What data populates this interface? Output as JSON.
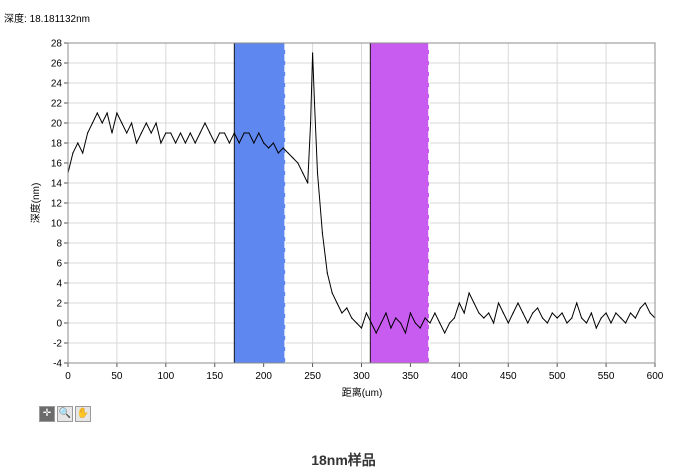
{
  "readout": {
    "label": "深度:",
    "value": "18.181132nm"
  },
  "caption": "18nm样品",
  "toolbar": [
    {
      "name": "cursor-move-tool",
      "glyph": "✛"
    },
    {
      "name": "zoom-tool",
      "glyph": "🔍"
    },
    {
      "name": "pan-hand-tool",
      "glyph": "✋"
    }
  ],
  "chart_data": {
    "type": "line",
    "title": "",
    "xlabel": "距离(um)",
    "ylabel": "深度(nm)",
    "xlim": [
      0,
      600
    ],
    "ylim": [
      -4,
      28
    ],
    "xticks": [
      "0",
      "50",
      "100",
      "150",
      "200",
      "250",
      "300",
      "350",
      "400",
      "450",
      "500",
      "550",
      "600"
    ],
    "yticks": [
      "-4",
      "-2",
      "0",
      "2",
      "4",
      "6",
      "8",
      "10",
      "12",
      "14",
      "16",
      "18",
      "20",
      "22",
      "24",
      "26",
      "28"
    ],
    "grid": true,
    "series": [
      {
        "line_color": "#000000",
        "x": [
          0,
          5,
          10,
          15,
          20,
          25,
          30,
          35,
          40,
          45,
          50,
          55,
          60,
          65,
          70,
          75,
          80,
          85,
          90,
          95,
          100,
          105,
          110,
          115,
          120,
          125,
          130,
          135,
          140,
          145,
          150,
          155,
          160,
          165,
          170,
          175,
          180,
          185,
          190,
          195,
          200,
          205,
          210,
          215,
          220,
          225,
          230,
          235,
          240,
          245,
          248,
          250,
          252,
          255,
          260,
          265,
          270,
          275,
          280,
          285,
          290,
          295,
          300,
          305,
          310,
          315,
          320,
          325,
          330,
          335,
          340,
          345,
          350,
          355,
          360,
          365,
          370,
          375,
          380,
          385,
          390,
          395,
          400,
          405,
          410,
          415,
          420,
          425,
          430,
          435,
          440,
          445,
          450,
          455,
          460,
          465,
          470,
          475,
          480,
          485,
          490,
          495,
          500,
          505,
          510,
          515,
          520,
          525,
          530,
          535,
          540,
          545,
          550,
          555,
          560,
          565,
          570,
          575,
          580,
          585,
          590,
          595,
          600
        ],
        "y": [
          15,
          17,
          18,
          17,
          19,
          20,
          21,
          20,
          21,
          19,
          21,
          20,
          19,
          20,
          18,
          19,
          20,
          19,
          20,
          18,
          19,
          19,
          18,
          19,
          18,
          19,
          18,
          19,
          20,
          19,
          18,
          19,
          19,
          18,
          19,
          18,
          19,
          19,
          18,
          19,
          18,
          17.5,
          18,
          17,
          17.5,
          17,
          16.5,
          16,
          15,
          14,
          20,
          27,
          22,
          15,
          9,
          5,
          3,
          2,
          1,
          1.5,
          0.5,
          0,
          -0.5,
          1,
          0,
          -1,
          0,
          1,
          -0.5,
          0.5,
          0,
          -1,
          1,
          0,
          -0.5,
          0.5,
          0,
          1,
          0,
          -1,
          0,
          0.5,
          2,
          1,
          3,
          2,
          1,
          0.5,
          1,
          0,
          2,
          1,
          0,
          1,
          2,
          1,
          0,
          1,
          1.5,
          0.5,
          0,
          1,
          0.5,
          1,
          0,
          0.5,
          2,
          0.5,
          0,
          1,
          -0.5,
          0.5,
          1,
          0,
          1,
          0.5,
          0,
          1,
          0.5,
          1.5,
          2,
          1,
          0.5
        ]
      }
    ],
    "regions": [
      {
        "x0": 170,
        "x1": 222,
        "color": "#5f87f0"
      },
      {
        "x0": 309,
        "x1": 369,
        "color": "#c85cf0"
      }
    ]
  }
}
